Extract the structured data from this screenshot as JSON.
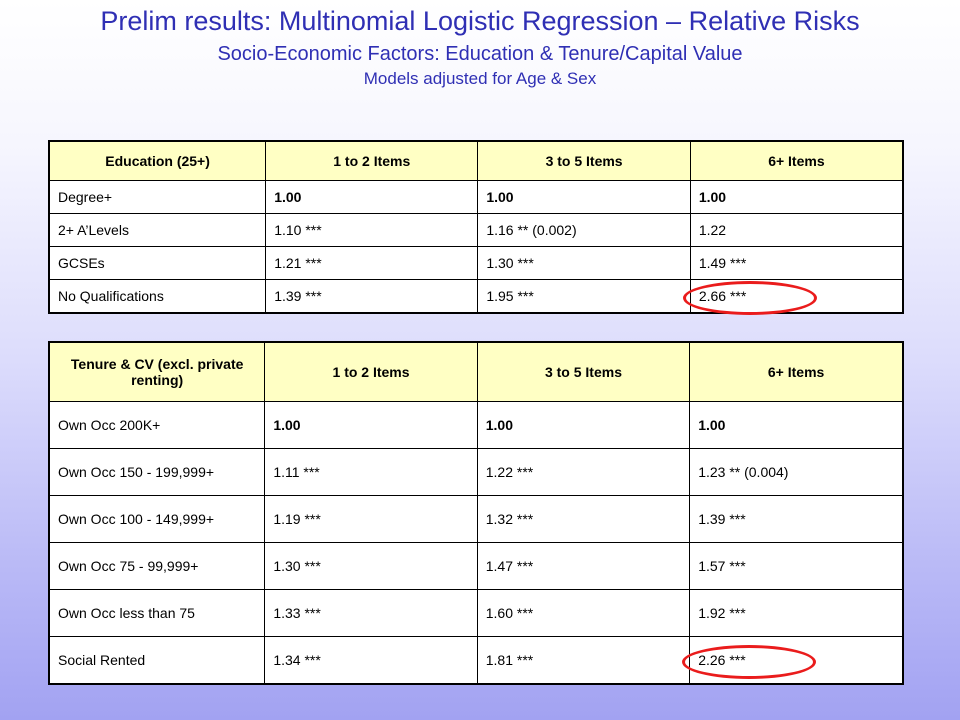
{
  "title": {
    "main": "Prelim results: Multinomial Logistic Regression – Relative Risks",
    "subtitle": "Socio-Economic Factors: Education & Tenure/Capital Value",
    "subtitle2": "Models adjusted for Age & Sex"
  },
  "education_table": {
    "headers": [
      "Education (25+)",
      "1 to 2 Items",
      "3 to 5 Items",
      "6+ Items"
    ],
    "rows": [
      [
        "Degree+",
        "1.00",
        "1.00",
        "1.00"
      ],
      [
        "2+ A’Levels",
        "1.10 ***",
        "1.16 ** (0.002)",
        "1.22"
      ],
      [
        "GCSEs",
        "1.21 ***",
        "1.30 ***",
        "1.49 ***"
      ],
      [
        "No Qualifications",
        "1.39 ***",
        "1.95 ***",
        "2.66 ***"
      ]
    ]
  },
  "tenure_table": {
    "headers": [
      "Tenure & CV (excl. private renting)",
      "1 to 2 Items",
      "3 to 5 Items",
      "6+ Items"
    ],
    "rows": [
      [
        "Own Occ 200K+",
        "1.00",
        "1.00",
        "1.00"
      ],
      [
        "Own Occ 150 - 199,999+",
        "1.11 ***",
        "1.22 ***",
        "1.23 ** (0.004)"
      ],
      [
        "Own Occ 100 - 149,999+",
        "1.19 ***",
        "1.32 ***",
        "1.39 ***"
      ],
      [
        "Own Occ 75 - 99,999+",
        "1.30 ***",
        "1.47 ***",
        "1.57 ***"
      ],
      [
        "Own Occ less than 75",
        "1.33 ***",
        "1.60 ***",
        "1.92 ***"
      ],
      [
        "Social Rented",
        "1.34 ***",
        "1.81 ***",
        "2.26 ***"
      ]
    ]
  },
  "colors": {
    "title": "#2f2fb4",
    "header_fill": "#ffffc4",
    "highlight_circle": "#ea1c1c"
  }
}
